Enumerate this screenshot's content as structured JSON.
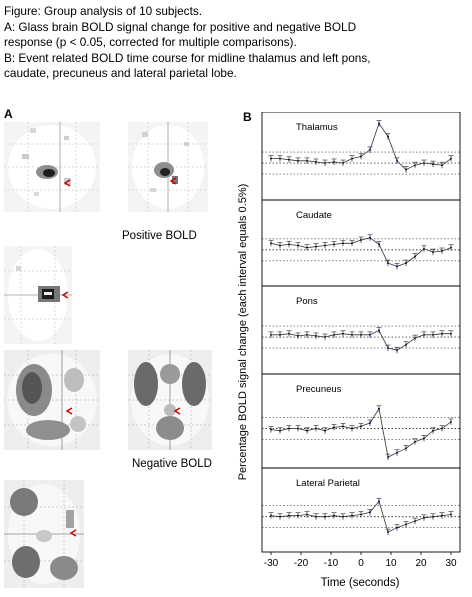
{
  "caption": {
    "line1": "Figure: Group analysis of 10 subjects.",
    "line2": "A: Glass brain BOLD signal change for positive and negative BOLD",
    "line3": "response (p < 0.05, corrected for multiple comparisons).",
    "line4": "B: Event related BOLD time course for midline thalamus and left pons,",
    "line5": "caudate, precuneus and lateral parietal lobe."
  },
  "panel_a": {
    "label": "A",
    "positive_label": "Positive BOLD",
    "negative_label": "Negative BOLD",
    "marker_color": "#cc0000"
  },
  "panel_b": {
    "label": "B",
    "ylabel": "Percentage BOLD signal change (each interval equals 0.5%)",
    "xlabel": "Time (seconds)",
    "xticks": [
      "-30",
      "-20",
      "-10",
      "0",
      "10",
      "20",
      "30"
    ]
  },
  "chart_data": {
    "type": "line",
    "xlabel": "Time (seconds)",
    "ylabel": "Percentage BOLD signal change (each interval equals 0.5%)",
    "xlim": [
      -33,
      33
    ],
    "x": [
      -30,
      -27,
      -24,
      -21,
      -18,
      -15,
      -12,
      -9,
      -6,
      -3,
      0,
      3,
      6,
      9,
      12,
      15,
      18,
      21,
      24,
      27,
      30
    ],
    "series": [
      {
        "name": "Thalamus",
        "values": [
          0.2,
          0.2,
          0.15,
          0.1,
          0.1,
          0.05,
          0.0,
          0.05,
          0.0,
          0.2,
          0.3,
          0.6,
          1.8,
          1.2,
          0.1,
          -0.3,
          -0.1,
          0.0,
          -0.05,
          -0.1,
          0.2
        ]
      },
      {
        "name": "Caudate",
        "values": [
          0.3,
          0.2,
          0.25,
          0.2,
          0.1,
          0.15,
          0.2,
          0.25,
          0.3,
          0.3,
          0.45,
          0.55,
          0.25,
          -0.6,
          -0.75,
          -0.6,
          -0.3,
          0.05,
          -0.1,
          -0.05,
          0.1
        ]
      },
      {
        "name": "Pons",
        "values": [
          0.1,
          0.1,
          0.15,
          0.05,
          0.1,
          0.05,
          0.0,
          0.1,
          0.15,
          0.1,
          0.1,
          0.1,
          0.3,
          -0.5,
          -0.6,
          -0.35,
          -0.05,
          0.1,
          0.1,
          0.15,
          0.15
        ]
      },
      {
        "name": "Precuneus",
        "values": [
          -0.05,
          -0.1,
          0.0,
          0.0,
          -0.1,
          0.0,
          -0.1,
          0.05,
          0.1,
          0.0,
          0.1,
          0.25,
          0.9,
          -1.3,
          -1.1,
          -0.9,
          -0.6,
          -0.45,
          -0.1,
          0.0,
          0.3
        ]
      },
      {
        "name": "Lateral Parietal",
        "values": [
          0.05,
          0.0,
          0.05,
          0.05,
          0.1,
          0.0,
          0.0,
          0.05,
          0.0,
          0.05,
          0.1,
          0.2,
          0.7,
          -0.7,
          -0.5,
          -0.35,
          -0.2,
          -0.05,
          0.0,
          0.05,
          0.1
        ]
      }
    ]
  }
}
